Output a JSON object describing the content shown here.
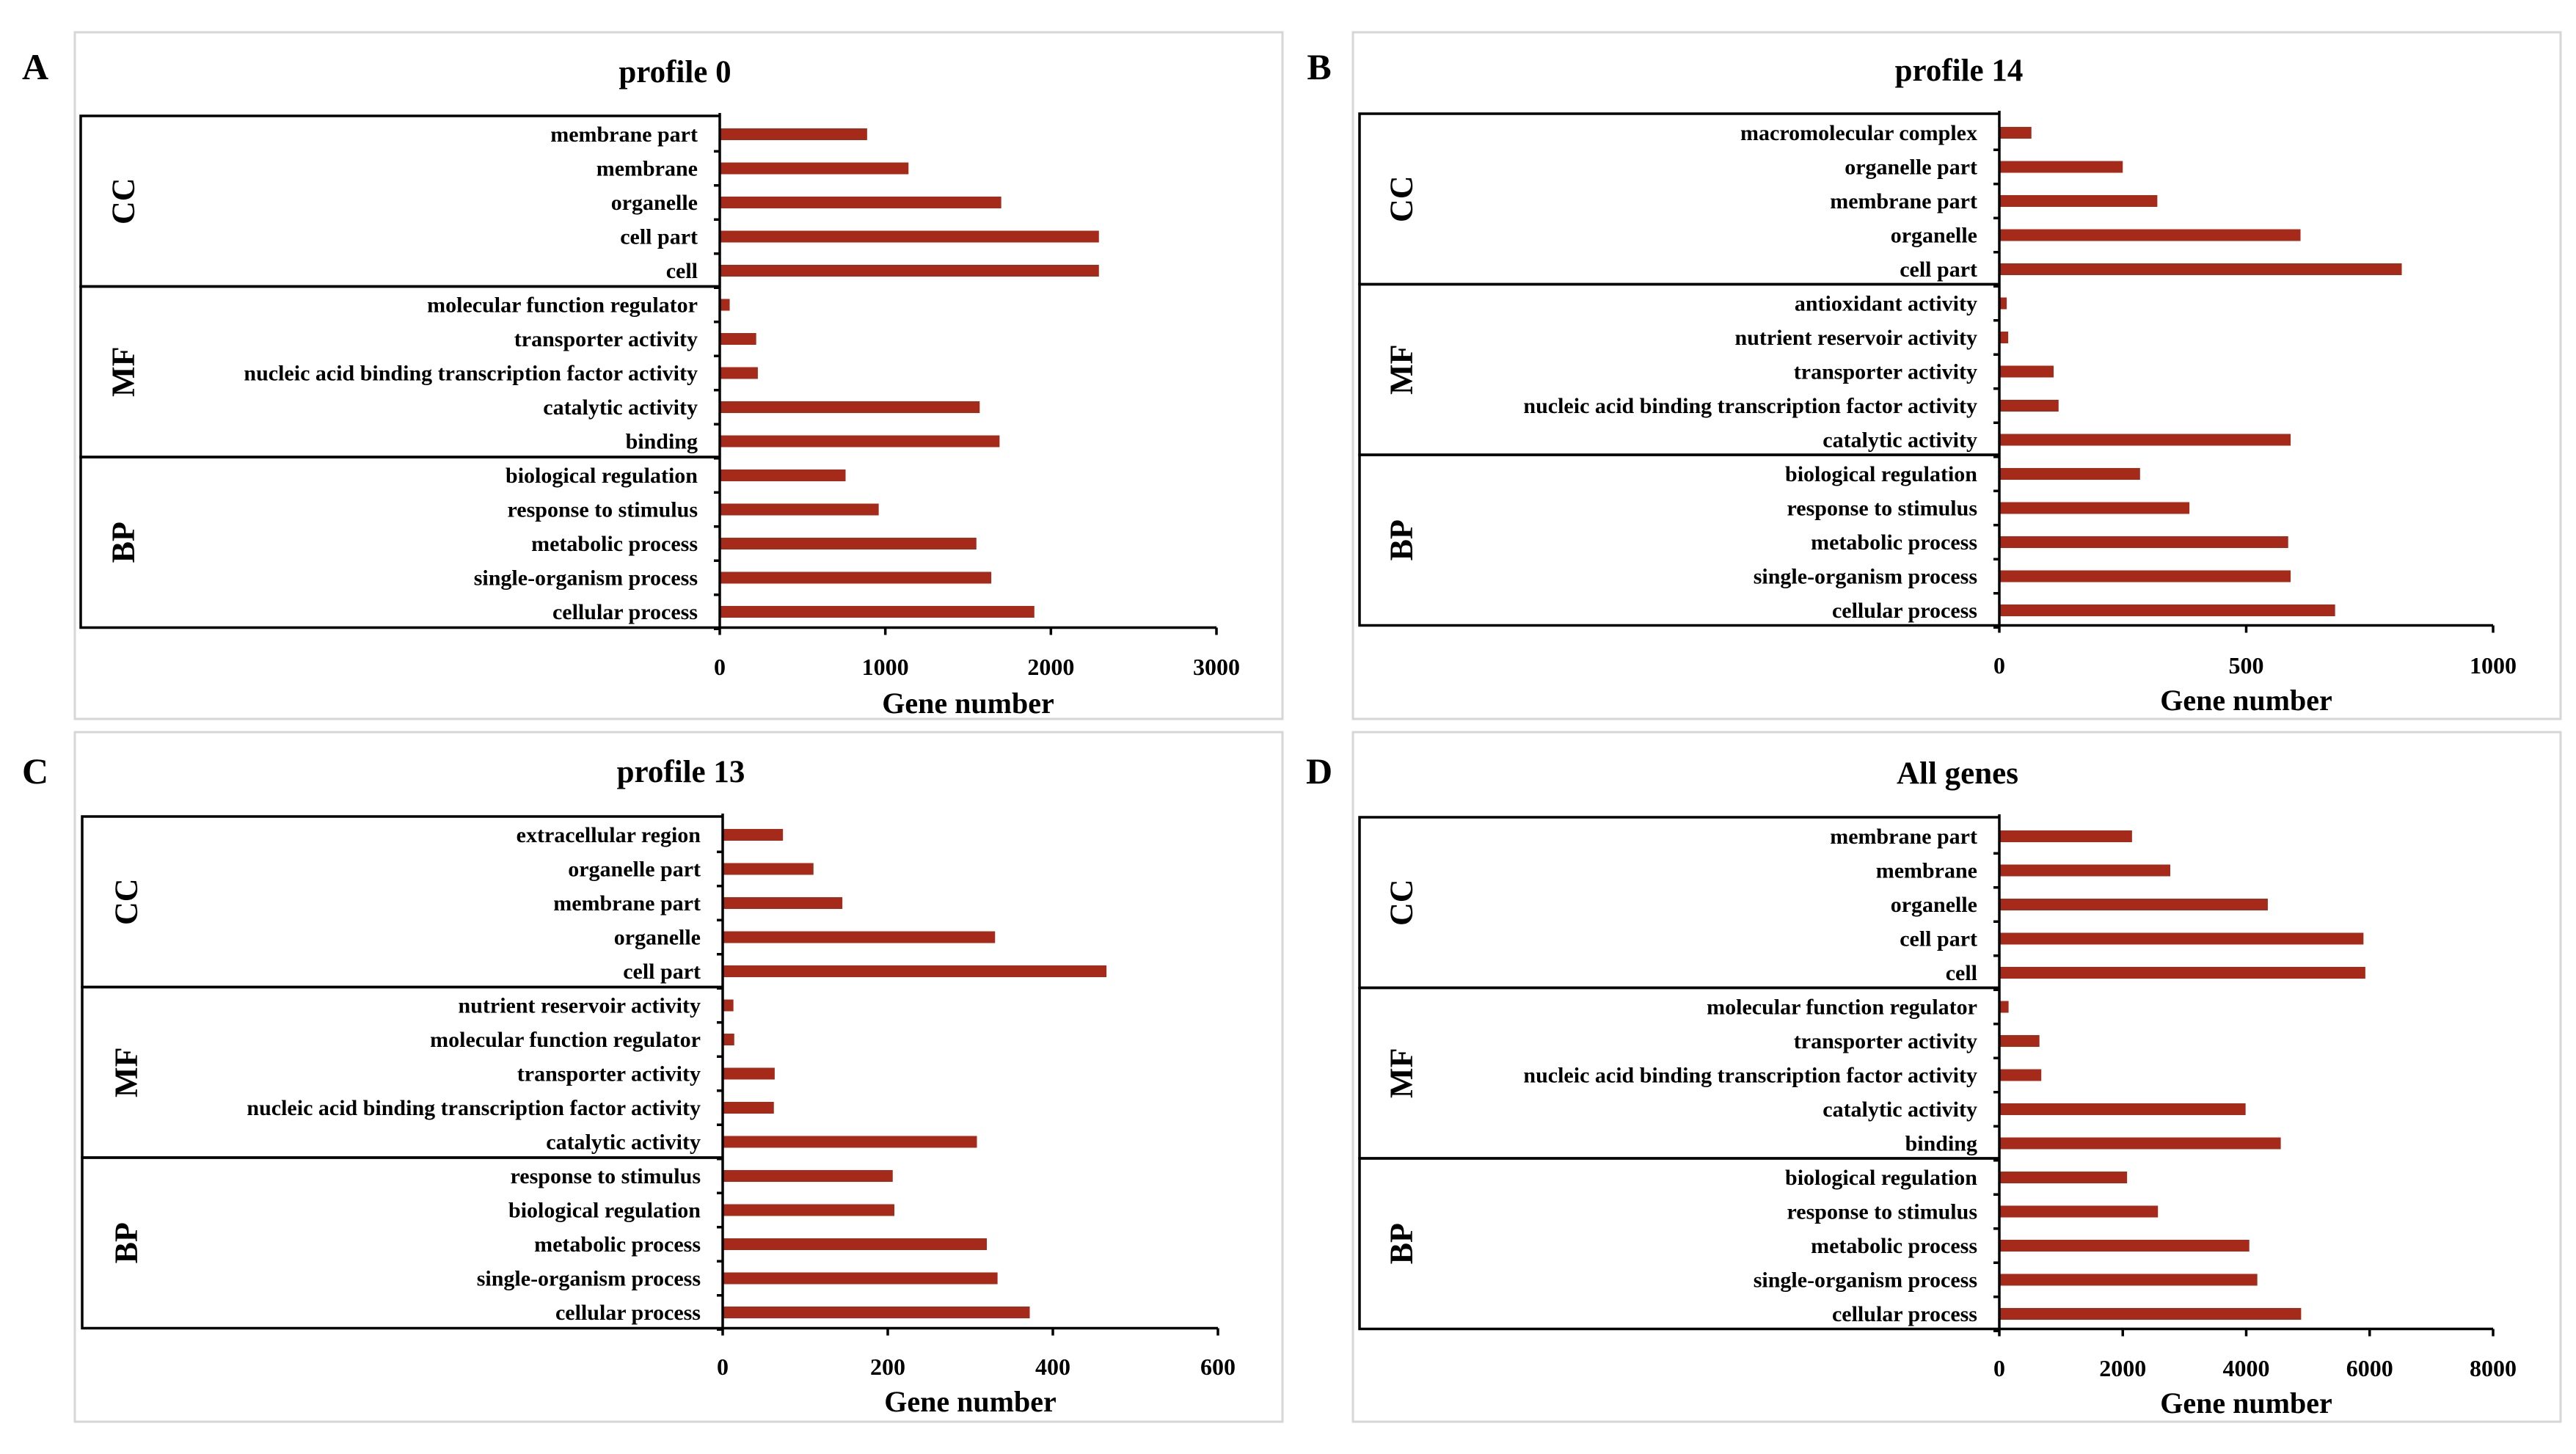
{
  "colors": {
    "bar": "#a52a1a",
    "frame": "#d6d6d6",
    "text": "#000000"
  },
  "chart_data": [
    {
      "panel_label": "A",
      "type": "bar",
      "orientation": "horizontal",
      "title": "profile 0",
      "xlabel": "Gene number",
      "xlim": [
        0,
        3000
      ],
      "xticks": [
        0,
        1000,
        2000,
        3000
      ],
      "groups": [
        {
          "name": "CC",
          "categories": [
            "membrane part",
            "membrane",
            "organelle",
            "cell part",
            "cell"
          ],
          "values": [
            890,
            1140,
            1700,
            2290,
            2290
          ]
        },
        {
          "name": "MF",
          "categories": [
            "molecular function regulator",
            "transporter activity",
            "nucleic acid binding transcription factor activity",
            "catalytic activity",
            "binding"
          ],
          "values": [
            60,
            220,
            230,
            1570,
            1690
          ]
        },
        {
          "name": "BP",
          "categories": [
            "biological regulation",
            "response to stimulus",
            "metabolic process",
            "single-organism process",
            "cellular process"
          ],
          "values": [
            760,
            960,
            1550,
            1640,
            1900
          ]
        }
      ]
    },
    {
      "panel_label": "B",
      "type": "bar",
      "orientation": "horizontal",
      "title": "profile 14",
      "xlabel": "Gene number",
      "xlim": [
        0,
        1000
      ],
      "xticks": [
        0,
        500,
        1000
      ],
      "groups": [
        {
          "name": "CC",
          "categories": [
            "macromolecular complex",
            "organelle part",
            "membrane part",
            "organelle",
            "cell part"
          ],
          "values": [
            65,
            250,
            320,
            610,
            815
          ]
        },
        {
          "name": "MF",
          "categories": [
            "antioxidant activity",
            "nutrient reservoir activity",
            "transporter activity",
            "nucleic acid binding transcription factor activity",
            "catalytic activity"
          ],
          "values": [
            15,
            18,
            110,
            120,
            590
          ]
        },
        {
          "name": "BP",
          "categories": [
            "biological regulation",
            "response to stimulus",
            "metabolic process",
            "single-organism process",
            "cellular process"
          ],
          "values": [
            285,
            385,
            585,
            590,
            680
          ]
        }
      ]
    },
    {
      "panel_label": "C",
      "type": "bar",
      "orientation": "horizontal",
      "title": "profile 13",
      "xlabel": "Gene number",
      "xlim": [
        0,
        600
      ],
      "xticks": [
        0,
        200,
        400,
        600
      ],
      "groups": [
        {
          "name": "CC",
          "categories": [
            "extracellular region",
            "organelle part",
            "membrane part",
            "organelle",
            "cell part"
          ],
          "values": [
            73,
            110,
            145,
            330,
            465
          ]
        },
        {
          "name": "MF",
          "categories": [
            "nutrient reservoir activity",
            "molecular function regulator",
            "transporter activity",
            "nucleic acid binding transcription factor activity",
            "catalytic activity"
          ],
          "values": [
            13,
            14,
            63,
            62,
            308
          ]
        },
        {
          "name": "BP",
          "categories": [
            "response to stimulus",
            "biological regulation",
            "metabolic process",
            "single-organism process",
            "cellular process"
          ],
          "values": [
            206,
            208,
            320,
            333,
            372
          ]
        }
      ]
    },
    {
      "panel_label": "D",
      "type": "bar",
      "orientation": "horizontal",
      "title": "All genes",
      "xlabel": "Gene number",
      "xlim": [
        0,
        8000
      ],
      "xticks": [
        0,
        2000,
        4000,
        6000,
        8000
      ],
      "groups": [
        {
          "name": "CC",
          "categories": [
            "membrane part",
            "membrane",
            "organelle",
            "cell part",
            "cell"
          ],
          "values": [
            2150,
            2770,
            4350,
            5900,
            5930
          ]
        },
        {
          "name": "MF",
          "categories": [
            "molecular function regulator",
            "transporter activity",
            "nucleic acid binding transcription factor activity",
            "catalytic activity",
            "binding"
          ],
          "values": [
            150,
            650,
            680,
            3990,
            4560
          ]
        },
        {
          "name": "BP",
          "categories": [
            "biological regulation",
            "response to stimulus",
            "metabolic process",
            "single-organism process",
            "cellular process"
          ],
          "values": [
            2070,
            2570,
            4050,
            4180,
            4890
          ]
        }
      ]
    }
  ]
}
